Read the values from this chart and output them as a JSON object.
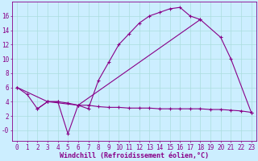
{
  "xlabel": "Windchill (Refroidissement éolien,°C)",
  "xlim": [
    -0.5,
    23.5
  ],
  "ylim": [
    -1.5,
    18
  ],
  "bg_color": "#cceeff",
  "line_color": "#880088",
  "xticks": [
    0,
    1,
    2,
    3,
    4,
    5,
    6,
    7,
    8,
    9,
    10,
    11,
    12,
    13,
    14,
    15,
    16,
    17,
    18,
    19,
    20,
    21,
    22,
    23
  ],
  "yticks": [
    0,
    2,
    4,
    6,
    8,
    10,
    12,
    14,
    16
  ],
  "ytick_labels": [
    "-0",
    "2",
    "4",
    "6",
    "8",
    "10",
    "12",
    "14",
    "16"
  ],
  "curve1_x": [
    0,
    1,
    2,
    3,
    4,
    5,
    6,
    7,
    8,
    9,
    10,
    11,
    12,
    13,
    14,
    15,
    16,
    17,
    18
  ],
  "curve1_y": [
    6,
    5,
    3,
    4,
    4,
    -0.5,
    3.5,
    3,
    7,
    9.5,
    12,
    13.5,
    15,
    16,
    16.5,
    17,
    17.2,
    16,
    15.5
  ],
  "curve2_x": [
    0,
    3,
    6,
    18,
    20,
    21,
    23
  ],
  "curve2_y": [
    6,
    4,
    3.5,
    15.5,
    13,
    10,
    2.5
  ],
  "curve3_x": [
    2,
    3,
    4,
    5,
    6,
    7,
    8,
    9,
    10,
    11,
    12,
    13,
    14,
    15,
    16,
    17,
    18,
    19,
    20,
    21,
    22,
    23
  ],
  "curve3_y": [
    3,
    4,
    4,
    3.8,
    3.5,
    3.5,
    3.3,
    3.2,
    3.2,
    3.1,
    3.1,
    3.1,
    3.0,
    3.0,
    3.0,
    3.0,
    3.0,
    2.9,
    2.9,
    2.8,
    2.7,
    2.5
  ],
  "grid_color": "#aadddd",
  "font_size": 6,
  "tick_font_size": 5.5,
  "lw": 0.8,
  "marker_size": 2.5
}
